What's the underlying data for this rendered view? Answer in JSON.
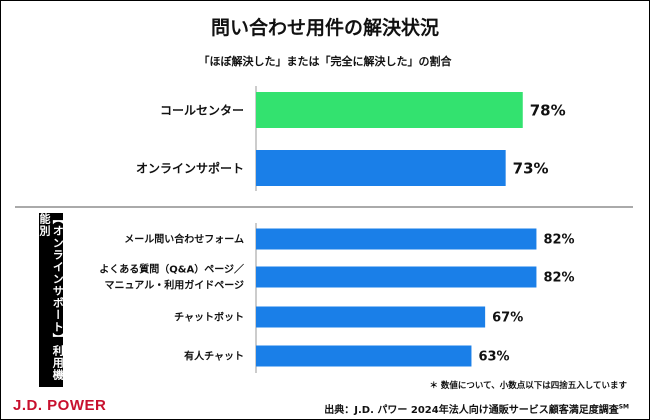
{
  "chart_data": {
    "type": "bar",
    "orientation": "horizontal",
    "title": "問い合わせ用件の解決状況",
    "subtitle": "「ほぼ解決した」または「完全に解決した」の割合",
    "group_label": "【オンラインサポート】利用機能別",
    "categories": [
      "コールセンター",
      "オンラインサポート",
      "メール問い合わせフォーム",
      "よくある質問（Q&A）ページ／マニュアル・利用ガイドページ",
      "チャットボット",
      "有人チャット"
    ],
    "category_lines": [
      [
        "コールセンター"
      ],
      [
        "オンラインサポート"
      ],
      [
        "メール問い合わせフォーム"
      ],
      [
        "よくある質問（Q&A）ページ／",
        "マニュアル・利用ガイドページ"
      ],
      [
        "チャットボット"
      ],
      [
        "有人チャット"
      ]
    ],
    "values": [
      78,
      73,
      82,
      82,
      67,
      63
    ],
    "value_labels": [
      "78%",
      "73%",
      "82%",
      "82%",
      "67%",
      "63%"
    ],
    "bar_colors": [
      "#33e26f",
      "#1a7fe8",
      "#1a7fe8",
      "#1a7fe8",
      "#1a7fe8",
      "#1a7fe8"
    ],
    "xlim": [
      0,
      100
    ],
    "grid": false
  },
  "footer": {
    "note": "＊ 数値について、小数点以下は四捨五入しています",
    "logo": "J.D. POWER",
    "source": "出典：J.D. パワー 2024年法人向け通販サービス顧客満足度調査",
    "source_mark": "SM"
  }
}
